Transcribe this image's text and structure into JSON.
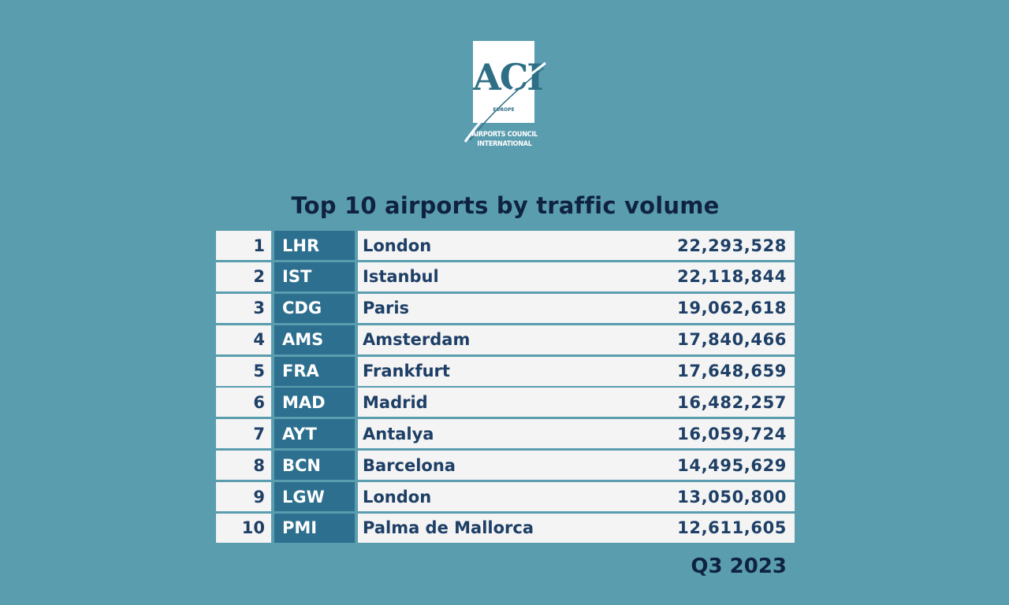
{
  "logo": {
    "letters": "ACI",
    "tag": "EUROPE",
    "caption_line1": "AIRPORTS COUNCIL",
    "caption_line2": "INTERNATIONAL"
  },
  "period": "Q3 2023",
  "colors": {
    "background": "#5a9daf",
    "code_cell": "#2d6f8e",
    "row_cell": "#f4f4f4",
    "title_text": "#0f2340",
    "cell_text": "#1e3f66"
  },
  "chart_data": {
    "type": "table",
    "title": "Top 10 airports by traffic volume",
    "columns": [
      "",
      "",
      "",
      ""
    ],
    "rows": [
      {
        "rank": "1",
        "code": "LHR",
        "city": "London",
        "passengers": "22,293,528"
      },
      {
        "rank": "2",
        "code": "IST",
        "city": "Istanbul",
        "passengers": "22,118,844"
      },
      {
        "rank": "3",
        "code": "CDG",
        "city": "Paris",
        "passengers": "19,062,618"
      },
      {
        "rank": "4",
        "code": "AMS",
        "city": "Amsterdam",
        "passengers": "17,840,466"
      },
      {
        "rank": "5",
        "code": "FRA",
        "city": "Frankfurt",
        "passengers": "17,648,659"
      },
      {
        "rank": "6",
        "code": "MAD",
        "city": "Madrid",
        "passengers": "16,482,257"
      },
      {
        "rank": "7",
        "code": "AYT",
        "city": "Antalya",
        "passengers": "16,059,724"
      },
      {
        "rank": "8",
        "code": "BCN",
        "city": "Barcelona",
        "passengers": "14,495,629"
      },
      {
        "rank": "9",
        "code": "LGW",
        "city": "London",
        "passengers": "13,050,800"
      },
      {
        "rank": "10",
        "code": "PMI",
        "city": "Palma de Mallorca",
        "passengers": "12,611,605"
      }
    ]
  }
}
